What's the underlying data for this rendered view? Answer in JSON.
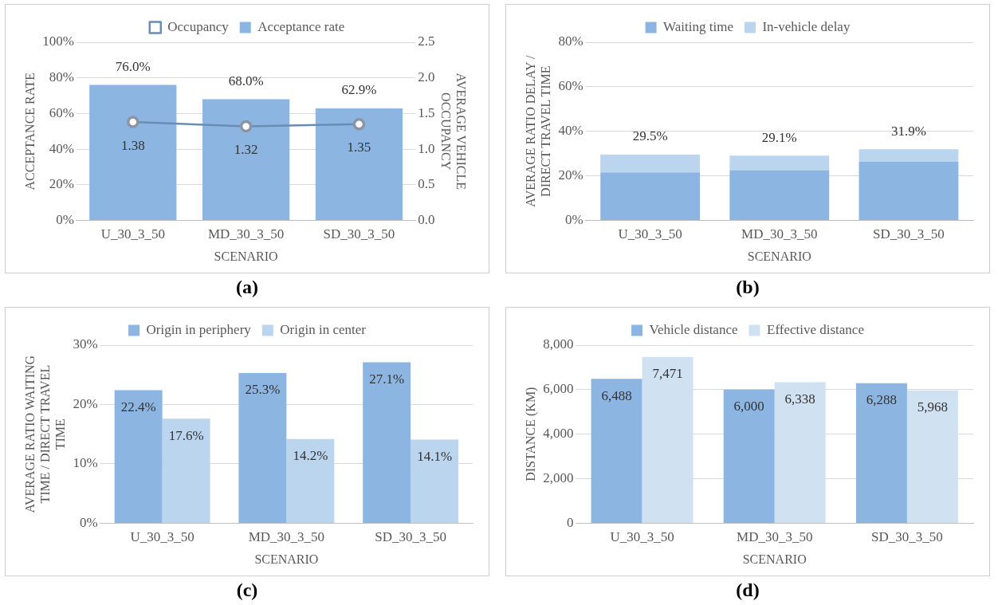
{
  "chart_data": [
    {
      "type": "bar",
      "categories": [
        "U_30_3_50",
        "MD_30_3_50",
        "SD_30_3_50"
      ],
      "xlabel": "SCENARIO",
      "ylabel": "ACCEPTANCE RATE",
      "y2label": "AVERAGE VEHICLE OCCUPANCY",
      "series": [
        {
          "name": "Acceptance rate",
          "color": "#8cb6e1",
          "values": [
            76.0,
            68.0,
            62.9
          ],
          "value_labels": [
            "76.0%",
            "68.0%",
            "62.9%"
          ]
        },
        {
          "name": "Occupancy",
          "type": "line",
          "axis": "y2",
          "color": "#6a8db4",
          "values": [
            1.38,
            1.32,
            1.35
          ],
          "value_labels": [
            "1.38",
            "1.32",
            "1.35"
          ],
          "marker": "circle",
          "line_style": "solid"
        }
      ],
      "ylim": [
        0,
        100
      ],
      "yticks": [
        {
          "value": 0,
          "label": "0%"
        },
        {
          "value": 20,
          "label": "20%"
        },
        {
          "value": 40,
          "label": "40%"
        },
        {
          "value": 60,
          "label": "60%"
        },
        {
          "value": 80,
          "label": "80%"
        },
        {
          "value": 100,
          "label": "100%"
        }
      ],
      "y2lim": [
        0,
        2.5
      ],
      "y2ticks": [
        {
          "value": 0,
          "label": "0.0"
        },
        0.5,
        {
          "value": 1,
          "label": "1.0"
        },
        1.5,
        {
          "value": 2,
          "label": "2.0"
        },
        2.5
      ],
      "grid": "y",
      "legend": "top",
      "annotations": [
        "(a)"
      ]
    },
    {
      "type": "bar",
      "stacked": true,
      "categories": [
        "U_30_3_50",
        "MD_30_3_50",
        "SD_30_3_50"
      ],
      "xlabel": "SCENARIO",
      "ylabel": "AVERAGE RATIO DELAY / DIRECT TRAVEL TIME",
      "series": [
        {
          "name": "Waiting time",
          "color": "#8cb6e1",
          "values": [
            21.5,
            22.5,
            26.3
          ]
        },
        {
          "name": "In-vehicle delay",
          "color": "#bcd5ee",
          "values": [
            8.0,
            6.6,
            5.6
          ]
        }
      ],
      "totals": [
        "29.5%",
        "29.1%",
        "31.9%"
      ],
      "ylim": [
        0,
        80
      ],
      "yticks": [
        {
          "value": 0,
          "label": "0%"
        },
        {
          "value": 20,
          "label": "20%"
        },
        {
          "value": 40,
          "label": "40%"
        },
        {
          "value": 60,
          "label": "60%"
        },
        {
          "value": 80,
          "label": "80%"
        }
      ],
      "grid": "y",
      "legend": "top",
      "annotations": [
        "(b)"
      ]
    },
    {
      "type": "bar",
      "categories": [
        "U_30_3_50",
        "MD_30_3_50",
        "SD_30_3_50"
      ],
      "xlabel": "SCENARIO",
      "ylabel": "AVERAGE RATIO WAITING TIME / DIRECT TRAVEL TIME",
      "series": [
        {
          "name": "Origin in periphery",
          "color": "#8cb6e1",
          "values": [
            22.4,
            25.3,
            27.1
          ],
          "value_labels": [
            "22.4%",
            "25.3%",
            "27.1%"
          ]
        },
        {
          "name": "Origin in center",
          "color": "#bcd5ee",
          "values": [
            17.6,
            14.2,
            14.1
          ],
          "value_labels": [
            "17.6%",
            "14.2%",
            "14.1%"
          ]
        }
      ],
      "ylim": [
        0,
        30
      ],
      "yticks": [
        {
          "value": 0,
          "label": "0%"
        },
        {
          "value": 10,
          "label": "10%"
        },
        {
          "value": 20,
          "label": "20%"
        },
        {
          "value": 30,
          "label": "30%"
        }
      ],
      "grid": "y",
      "legend": "top",
      "annotations": [
        "(c)"
      ]
    },
    {
      "type": "bar",
      "categories": [
        "U_30_3_50",
        "MD_30_3_50",
        "SD_30_3_50"
      ],
      "xlabel": "SCENARIO",
      "ylabel": "DISTANCE (KM)",
      "series": [
        {
          "name": "Vehicle distance",
          "color": "#8cb6e1",
          "values": [
            6488,
            6000,
            6288
          ],
          "value_labels": [
            "6,488",
            "6,000",
            "6,288"
          ]
        },
        {
          "name": "Effective distance",
          "color": "#d0e1f2",
          "values": [
            7471,
            6338,
            5968
          ],
          "value_labels": [
            "7,471",
            "6,338",
            "5,968"
          ]
        }
      ],
      "ylim": [
        0,
        8000
      ],
      "yticks": [
        0,
        {
          "value": 2000,
          "label": "2,000"
        },
        {
          "value": 4000,
          "label": "4,000"
        },
        {
          "value": 6000,
          "label": "6,000"
        },
        {
          "value": 8000,
          "label": "8,000"
        }
      ],
      "grid": "y",
      "legend": "top",
      "annotations": [
        "(d)"
      ]
    }
  ]
}
